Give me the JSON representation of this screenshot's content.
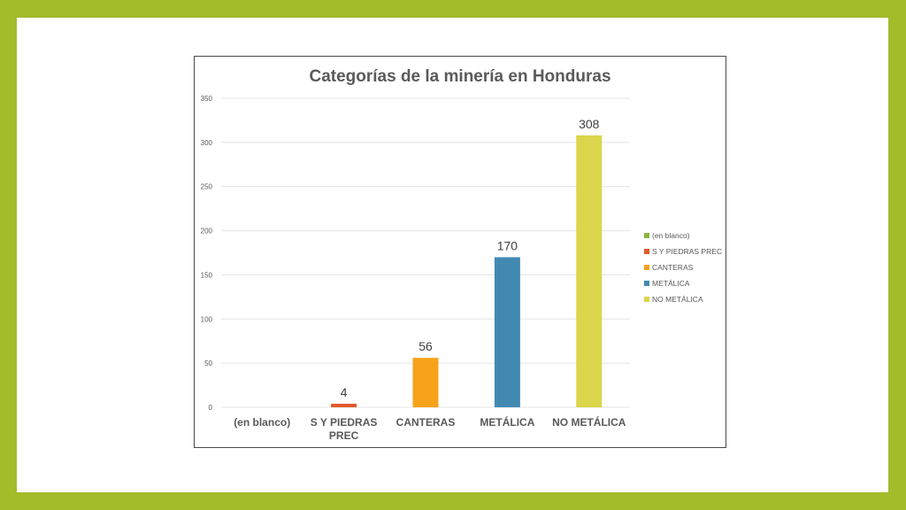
{
  "chart_data": {
    "type": "bar",
    "title": "Categorías de la minería en Honduras",
    "xlabel": "",
    "ylabel": "",
    "categories": [
      "(en blanco)",
      "S Y PIEDRAS PREC",
      "CANTERAS",
      "METÁLICA",
      "NO METÁLICA"
    ],
    "category_lines": [
      [
        "(en blanco)"
      ],
      [
        "S Y PIEDRAS",
        "PREC"
      ],
      [
        "CANTERAS"
      ],
      [
        "METÁLICA"
      ],
      [
        "NO METÁLICA"
      ]
    ],
    "values": [
      0,
      4,
      56,
      170,
      308
    ],
    "data_labels": [
      "",
      "4",
      "56",
      "170",
      "308"
    ],
    "colors": [
      "#8db33f",
      "#e15a2b",
      "#f7a21b",
      "#4289b2",
      "#dad54a"
    ],
    "legend": [
      "(en blanco)",
      "S Y PIEDRAS PREC",
      "CANTERAS",
      "METÁLICA",
      "NO METÁLICA"
    ],
    "legend_position": "right",
    "ylim": [
      0,
      350
    ],
    "yticks": [
      0,
      50,
      100,
      150,
      200,
      250,
      300,
      350
    ],
    "grid": true
  },
  "theme": {
    "frame_color": "#a2bc2a",
    "grid_color": "#e4e4e4",
    "title_color": "#5a5a5a",
    "label_color": "#595959",
    "value_label_color": "#404040"
  }
}
